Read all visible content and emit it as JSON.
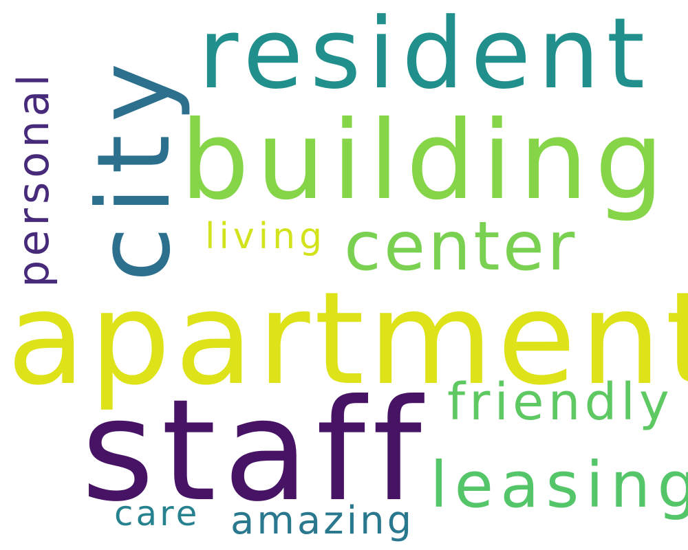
{
  "words": {
    "resident": {
      "text": "resident",
      "color": "#21908c"
    },
    "building": {
      "text": "building",
      "color": "#86d549"
    },
    "apartment": {
      "text": "apartment",
      "color": "#dde318"
    },
    "staff": {
      "text": "staff",
      "color": "#471365"
    },
    "center": {
      "text": "center",
      "color": "#7ad151"
    },
    "friendly": {
      "text": "friendly",
      "color": "#5ec962"
    },
    "leasing": {
      "text": "leasing",
      "color": "#54c568"
    },
    "living": {
      "text": "living",
      "color": "#d2e21b"
    },
    "care": {
      "text": "care",
      "color": "#26828e"
    },
    "amazing": {
      "text": "amazing",
      "color": "#2a788e"
    },
    "city": {
      "text": "city",
      "color": "#2d708e"
    },
    "personal": {
      "text": "personal",
      "color": "#472a7a"
    }
  }
}
